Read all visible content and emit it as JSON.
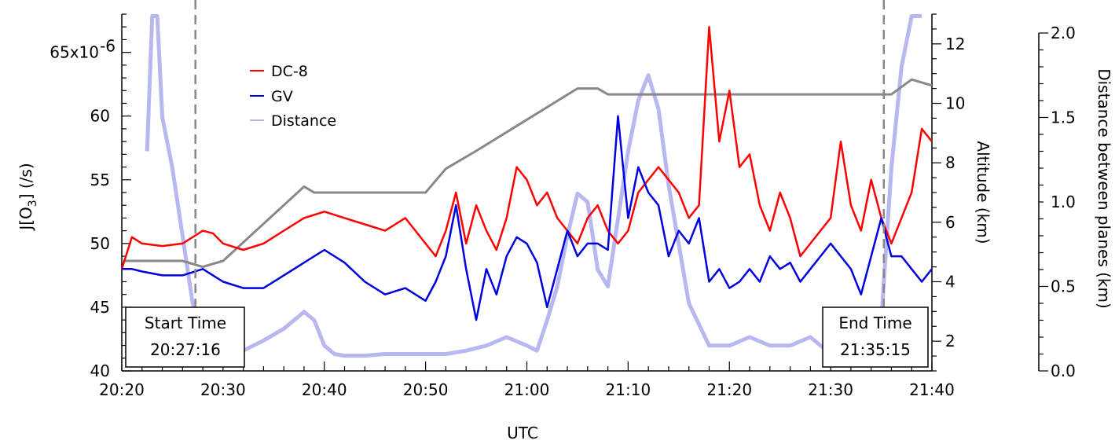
{
  "chart_data": {
    "type": "line",
    "xlabel": "UTC",
    "ylabel_left": "J[O3] (/s)",
    "ylabel_left_main": "J[O",
    "ylabel_left_sub": "3",
    "ylabel_left_tail": "] (/s)",
    "ylabel_alt": "Altitude (km)",
    "ylabel_dist": "Distance between planes (km)",
    "x_ticks": [
      "20:20",
      "20:30",
      "20:40",
      "20:50",
      "21:00",
      "21:10",
      "21:20",
      "21:30",
      "21:40"
    ],
    "x_range_minutes": [
      0,
      80
    ],
    "y_left_ticks": [
      "40",
      "45",
      "50",
      "55",
      "60",
      "65x10"
    ],
    "y_left_exponent": "-6",
    "y_left_range": [
      40,
      68
    ],
    "y_alt_ticks": [
      "2",
      "4",
      "6",
      "8",
      "10",
      "12"
    ],
    "y_alt_range": [
      1,
      13
    ],
    "y_dist_ticks": [
      "0.0",
      "0.5",
      "1.0",
      "1.5",
      "2.0"
    ],
    "y_dist_range": [
      0,
      2
    ],
    "legend": {
      "position": "upper-left",
      "entries": [
        "DC-8",
        "GV",
        "Distance"
      ]
    },
    "colors": {
      "DC-8": "#ff0000",
      "GV": "#0000e0",
      "Distance": "#b8b8f0",
      "Altitude": "#888888",
      "marker": "#888888"
    },
    "markers": [
      {
        "label": "Start Time",
        "time": "20:27:16",
        "x": 7.27
      },
      {
        "label": "End Time",
        "time": "21:35:15",
        "x": 75.25
      }
    ],
    "series": [
      {
        "name": "DC-8",
        "axis": "left",
        "x": [
          0,
          1,
          2,
          4,
          6,
          8,
          9,
          10,
          12,
          14,
          16,
          18,
          20,
          22,
          24,
          26,
          28,
          30,
          31,
          32,
          33,
          34,
          35,
          36,
          37,
          38,
          39,
          40,
          41,
          42,
          43,
          44,
          45,
          46,
          47,
          48,
          49,
          50,
          51,
          52,
          53,
          54,
          55,
          56,
          57,
          58,
          59,
          60,
          61,
          62,
          63,
          64,
          65,
          66,
          67,
          68,
          69,
          70,
          71,
          72,
          73,
          74,
          75,
          76,
          77,
          78,
          79,
          80
        ],
        "y": [
          48,
          50.5,
          50,
          49.8,
          50,
          51,
          50.8,
          50,
          49.5,
          50,
          51,
          52,
          52.5,
          52,
          51.5,
          51,
          52,
          50,
          49,
          51,
          54,
          50,
          53,
          51,
          49.5,
          52,
          56,
          55,
          53,
          54,
          52,
          51,
          50,
          52,
          53,
          51,
          50,
          51,
          54,
          55,
          56,
          55,
          54,
          52,
          53,
          67,
          58,
          62,
          56,
          57,
          53,
          51,
          54,
          52,
          49,
          50,
          51,
          52,
          58,
          53,
          51,
          55,
          52,
          50,
          52,
          54,
          59,
          58
        ]
      },
      {
        "name": "GV",
        "axis": "left",
        "x": [
          0,
          1,
          2,
          4,
          6,
          8,
          9,
          10,
          12,
          14,
          16,
          18,
          20,
          22,
          24,
          26,
          28,
          30,
          31,
          32,
          33,
          34,
          35,
          36,
          37,
          38,
          39,
          40,
          41,
          42,
          43,
          44,
          45,
          46,
          47,
          48,
          49,
          50,
          51,
          52,
          53,
          54,
          55,
          56,
          57,
          58,
          59,
          60,
          61,
          62,
          63,
          64,
          65,
          66,
          67,
          68,
          69,
          70,
          71,
          72,
          73,
          74,
          75,
          76,
          77,
          78,
          79,
          80
        ],
        "y": [
          48,
          48,
          47.8,
          47.5,
          47.5,
          48,
          47.5,
          47,
          46.5,
          46.5,
          47.5,
          48.5,
          49.5,
          48.5,
          47,
          46,
          46.5,
          45.5,
          47,
          49,
          53,
          48,
          44,
          48,
          46,
          49,
          50.5,
          50,
          48.5,
          45,
          48,
          51,
          49,
          50,
          50,
          49.5,
          60,
          52,
          56,
          54,
          53,
          49,
          51,
          50,
          52,
          47,
          48,
          46.5,
          47,
          48,
          47,
          49,
          48,
          48.5,
          47,
          48,
          49,
          50,
          49,
          48,
          46,
          49,
          52,
          49,
          49,
          48,
          47,
          48
        ]
      },
      {
        "name": "Altitude",
        "axis": "alt",
        "x": [
          0,
          6,
          8,
          10,
          18,
          19,
          24,
          30,
          32,
          35,
          45,
          47,
          48,
          76,
          78,
          80
        ],
        "y": [
          4.7,
          4.7,
          4.5,
          4.7,
          7.2,
          7.0,
          7.0,
          7.0,
          7.8,
          8.4,
          10.5,
          10.5,
          10.3,
          10.3,
          10.8,
          10.6
        ]
      },
      {
        "name": "Distance",
        "axis": "dist",
        "x": [
          2.5,
          3,
          3.5,
          4,
          5,
          6,
          7,
          8,
          9,
          10,
          12,
          14,
          16,
          18,
          19,
          20,
          21,
          22,
          24,
          26,
          28,
          30,
          32,
          34,
          36,
          38,
          40,
          41,
          42,
          43,
          44,
          45,
          46,
          47,
          48,
          49,
          50,
          51,
          52,
          53,
          54,
          56,
          58,
          60,
          62,
          64,
          66,
          68,
          70,
          72,
          74,
          75,
          76,
          77,
          78,
          79
        ],
        "y": [
          1.3,
          2.1,
          2.1,
          1.5,
          1.2,
          0.8,
          0.4,
          0.2,
          0.15,
          0.1,
          0.12,
          0.18,
          0.25,
          0.35,
          0.3,
          0.15,
          0.1,
          0.09,
          0.09,
          0.1,
          0.1,
          0.1,
          0.1,
          0.12,
          0.15,
          0.2,
          0.15,
          0.12,
          0.3,
          0.5,
          0.8,
          1.05,
          1.0,
          0.6,
          0.5,
          0.9,
          1.3,
          1.6,
          1.75,
          1.55,
          1.1,
          0.4,
          0.15,
          0.15,
          0.2,
          0.15,
          0.15,
          0.2,
          0.1,
          0.1,
          0.1,
          0.3,
          1.2,
          1.8,
          2.1,
          2.1
        ]
      }
    ]
  }
}
